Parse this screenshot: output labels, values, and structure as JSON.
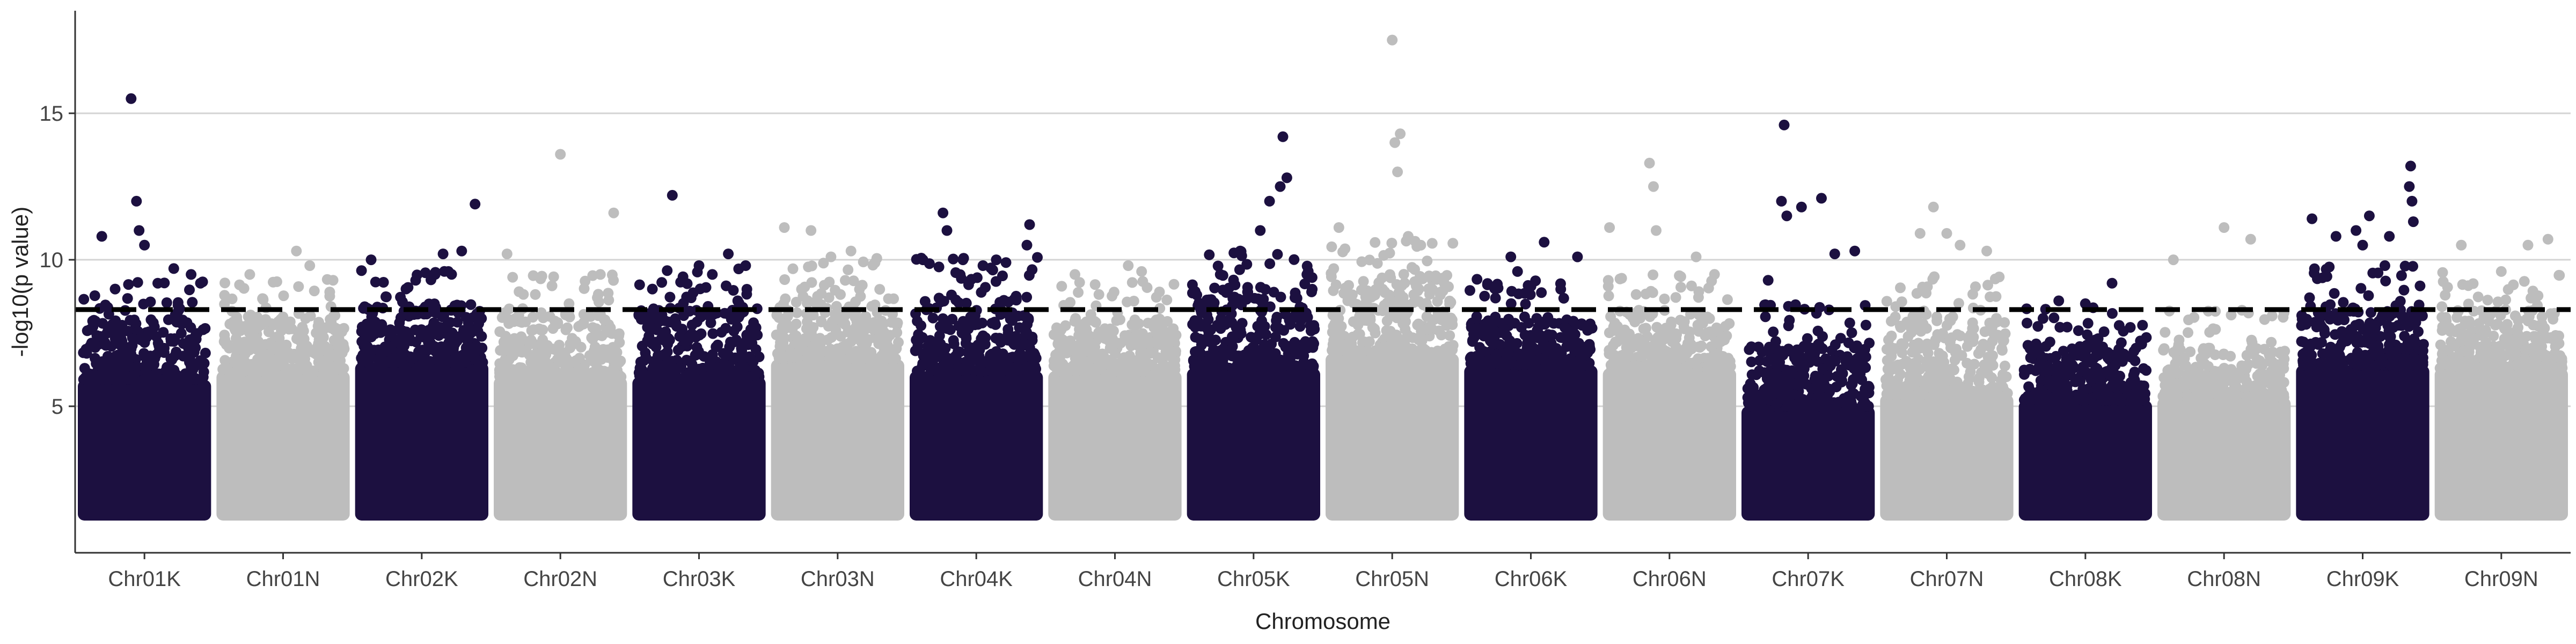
{
  "chart_data": {
    "type": "scatter",
    "subtype": "manhattan",
    "title": "",
    "xlabel": "Chromosome",
    "ylabel": "-log10(p value)",
    "ylim": [
      0,
      18.5
    ],
    "yticks": [
      5,
      10,
      15
    ],
    "grid": "horizontal",
    "legend": "none",
    "threshold": 8.3,
    "threshold_style": "dashed",
    "point_floor": 1.1,
    "colors": {
      "dark": "#1c1040",
      "light": "#bdbdbd",
      "grid": "#d4d4d4",
      "threshold": "#000000",
      "axis": "#333333"
    },
    "chromosomes": [
      {
        "name": "Chr01K",
        "color": "dark",
        "bulk_top": 5.9,
        "dense": 8.0,
        "outliers": [
          [
            0.18,
            10.8
          ],
          [
            0.28,
            9.0
          ],
          [
            0.4,
            15.5
          ],
          [
            0.44,
            12.0
          ],
          [
            0.46,
            11.0
          ],
          [
            0.5,
            10.5
          ],
          [
            0.6,
            9.2
          ],
          [
            0.72,
            9.7
          ],
          [
            0.85,
            9.5
          ],
          [
            0.92,
            9.2
          ]
        ]
      },
      {
        "name": "Chr01N",
        "color": "light",
        "bulk_top": 6.2,
        "dense": 8.1,
        "outliers": [
          [
            0.25,
            9.5
          ],
          [
            0.6,
            10.3
          ],
          [
            0.7,
            9.8
          ],
          [
            0.85,
            8.9
          ]
        ]
      },
      {
        "name": "Chr02K",
        "color": "dark",
        "bulk_top": 6.5,
        "dense": 8.4,
        "outliers": [
          [
            0.12,
            10.0
          ],
          [
            0.6,
            9.5
          ],
          [
            0.66,
            10.2
          ],
          [
            0.7,
            9.6
          ],
          [
            0.8,
            10.3
          ],
          [
            0.9,
            11.9
          ]
        ]
      },
      {
        "name": "Chr02N",
        "color": "light",
        "bulk_top": 6.0,
        "dense": 8.2,
        "outliers": [
          [
            0.1,
            10.2
          ],
          [
            0.5,
            13.6
          ],
          [
            0.8,
            9.5
          ],
          [
            0.9,
            11.6
          ]
        ]
      },
      {
        "name": "Chr03K",
        "color": "dark",
        "bulk_top": 6.0,
        "dense": 8.4,
        "outliers": [
          [
            0.15,
            9.0
          ],
          [
            0.3,
            12.2
          ],
          [
            0.5,
            9.8
          ],
          [
            0.6,
            9.5
          ],
          [
            0.72,
            10.2
          ],
          [
            0.85,
            9.8
          ]
        ]
      },
      {
        "name": "Chr03N",
        "color": "light",
        "bulk_top": 6.6,
        "dense": 8.8,
        "outliers": [
          [
            0.1,
            11.1
          ],
          [
            0.3,
            11.0
          ],
          [
            0.45,
            10.1
          ],
          [
            0.6,
            10.3
          ],
          [
            0.78,
            9.9
          ]
        ]
      },
      {
        "name": "Chr04K",
        "color": "dark",
        "bulk_top": 6.2,
        "dense": 8.8,
        "outliers": [
          [
            0.1,
            10.0
          ],
          [
            0.25,
            11.6
          ],
          [
            0.28,
            11.0
          ],
          [
            0.4,
            10.0
          ],
          [
            0.55,
            9.8
          ],
          [
            0.65,
            10.0
          ],
          [
            0.9,
            11.2
          ],
          [
            0.88,
            10.5
          ]
        ]
      },
      {
        "name": "Chr04N",
        "color": "light",
        "bulk_top": 6.2,
        "dense": 8.0,
        "outliers": [
          [
            0.2,
            9.5
          ],
          [
            0.6,
            9.8
          ],
          [
            0.7,
            9.6
          ]
        ]
      },
      {
        "name": "Chr05K",
        "color": "dark",
        "bulk_top": 6.3,
        "dense": 9.0,
        "outliers": [
          [
            0.25,
            9.5
          ],
          [
            0.4,
            10.3
          ],
          [
            0.55,
            11.0
          ],
          [
            0.62,
            12.0
          ],
          [
            0.7,
            12.5
          ],
          [
            0.72,
            14.2
          ],
          [
            0.75,
            12.8
          ],
          [
            0.9,
            9.5
          ]
        ]
      },
      {
        "name": "Chr05N",
        "color": "light",
        "bulk_top": 6.8,
        "dense": 9.5,
        "outliers": [
          [
            0.1,
            11.1
          ],
          [
            0.5,
            17.5
          ],
          [
            0.52,
            14.0
          ],
          [
            0.54,
            13.0
          ],
          [
            0.56,
            14.3
          ],
          [
            0.62,
            10.8
          ],
          [
            0.7,
            9.0
          ]
        ]
      },
      {
        "name": "Chr06K",
        "color": "dark",
        "bulk_top": 6.4,
        "dense": 8.1,
        "outliers": [
          [
            0.35,
            10.1
          ],
          [
            0.4,
            9.6
          ],
          [
            0.6,
            10.6
          ],
          [
            0.85,
            10.1
          ]
        ]
      },
      {
        "name": "Chr06N",
        "color": "light",
        "bulk_top": 6.3,
        "dense": 8.3,
        "outliers": [
          [
            0.05,
            11.1
          ],
          [
            0.35,
            13.3
          ],
          [
            0.38,
            12.5
          ],
          [
            0.4,
            11.0
          ],
          [
            0.7,
            10.1
          ]
        ]
      },
      {
        "name": "Chr07K",
        "color": "dark",
        "bulk_top": 5.0,
        "dense": 7.2,
        "outliers": [
          [
            0.2,
            9.3
          ],
          [
            0.3,
            12.0
          ],
          [
            0.32,
            14.6
          ],
          [
            0.34,
            11.5
          ],
          [
            0.45,
            11.8
          ],
          [
            0.6,
            12.1
          ],
          [
            0.7,
            10.2
          ],
          [
            0.85,
            10.3
          ]
        ]
      },
      {
        "name": "Chr07N",
        "color": "light",
        "bulk_top": 5.4,
        "dense": 8.2,
        "outliers": [
          [
            0.3,
            10.9
          ],
          [
            0.4,
            11.8
          ],
          [
            0.5,
            10.9
          ],
          [
            0.6,
            10.5
          ],
          [
            0.8,
            10.3
          ]
        ]
      },
      {
        "name": "Chr08K",
        "color": "dark",
        "bulk_top": 5.2,
        "dense": 7.2,
        "outliers": [
          [
            0.3,
            8.6
          ],
          [
            0.5,
            8.5
          ],
          [
            0.7,
            9.2
          ]
        ]
      },
      {
        "name": "Chr08N",
        "color": "light",
        "bulk_top": 5.3,
        "dense": 7.0,
        "outliers": [
          [
            0.12,
            10.0
          ],
          [
            0.5,
            11.1
          ],
          [
            0.7,
            10.7
          ]
        ]
      },
      {
        "name": "Chr09K",
        "color": "dark",
        "bulk_top": 6.4,
        "dense": 8.5,
        "outliers": [
          [
            0.12,
            11.4
          ],
          [
            0.3,
            10.8
          ],
          [
            0.45,
            11.0
          ],
          [
            0.5,
            10.5
          ],
          [
            0.55,
            11.5
          ],
          [
            0.7,
            10.8
          ],
          [
            0.85,
            12.5
          ],
          [
            0.86,
            13.2
          ],
          [
            0.87,
            12.0
          ],
          [
            0.88,
            11.3
          ]
        ]
      },
      {
        "name": "Chr09N",
        "color": "light",
        "bulk_top": 6.3,
        "dense": 8.3,
        "outliers": [
          [
            0.2,
            10.5
          ],
          [
            0.5,
            9.6
          ],
          [
            0.7,
            10.5
          ],
          [
            0.85,
            10.7
          ]
        ]
      }
    ]
  }
}
